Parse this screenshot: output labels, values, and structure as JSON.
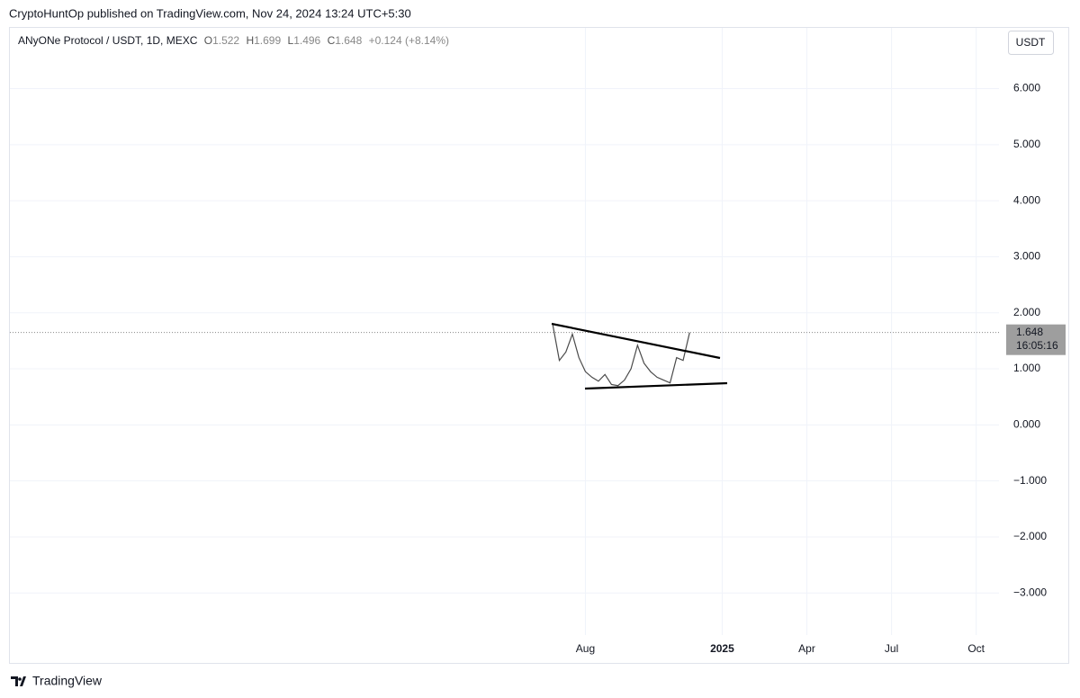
{
  "published": "CryptoHuntOp published on TradingView.com, Nov 24, 2024 13:24 UTC+5:30",
  "brand": "TradingView",
  "chart_data": {
    "type": "line",
    "symbol": "ANyONe Protocol / USDT, 1D, MEXC",
    "ohlc": [
      {
        "label": "O",
        "value": 1.522
      },
      {
        "label": "H",
        "value": 1.699
      },
      {
        "label": "L",
        "value": 1.496
      },
      {
        "label": "C",
        "value": 1.648
      }
    ],
    "change": "+0.124 (+8.14%)",
    "currency": "USDT",
    "last_price": 1.648,
    "countdown": "16:05:16",
    "color": "#4a4a4a",
    "grid": true,
    "categories": [
      null,
      null,
      null,
      null,
      null,
      null,
      null,
      null,
      null,
      null,
      null,
      null,
      null,
      null,
      null,
      null,
      null,
      null,
      null,
      null,
      null,
      null,
      null,
      null,
      null,
      null,
      null,
      null,
      null,
      null,
      null,
      null,
      null,
      null,
      null,
      null,
      null,
      null,
      null,
      null,
      null,
      null,
      null,
      null,
      null,
      null,
      null,
      null,
      null,
      null,
      null,
      null,
      null,
      null,
      null,
      null,
      null,
      null,
      null,
      null,
      null,
      null,
      null,
      null,
      null,
      null,
      null,
      null,
      null,
      null,
      null,
      null,
      null,
      null,
      null,
      null,
      null,
      null,
      null,
      null,
      null,
      null,
      null,
      null,
      null,
      null,
      null,
      null,
      "Aug",
      null,
      null,
      null,
      null,
      null,
      null,
      null,
      null,
      null,
      null,
      null,
      null,
      null,
      null,
      null,
      null,
      null,
      null,
      null,
      null,
      "2025",
      null,
      null,
      null,
      null,
      null,
      null,
      null,
      null,
      null,
      null,
      null,
      null,
      "Apr",
      null,
      null,
      null,
      null,
      null,
      null,
      null,
      null,
      null,
      null,
      null,
      null,
      "Jul",
      null,
      null,
      null,
      null,
      null,
      null,
      null,
      null,
      null,
      null,
      null,
      null,
      "Oct",
      null,
      null,
      null
    ],
    "values": [
      null,
      null,
      null,
      null,
      null,
      null,
      null,
      null,
      null,
      null,
      null,
      null,
      null,
      null,
      null,
      null,
      null,
      null,
      null,
      null,
      null,
      null,
      null,
      null,
      null,
      null,
      null,
      null,
      null,
      null,
      null,
      null,
      null,
      null,
      null,
      null,
      null,
      null,
      null,
      null,
      null,
      null,
      null,
      null,
      null,
      null,
      null,
      null,
      null,
      null,
      null,
      null,
      null,
      null,
      null,
      null,
      null,
      null,
      null,
      null,
      null,
      null,
      null,
      null,
      null,
      null,
      null,
      null,
      null,
      null,
      null,
      null,
      null,
      null,
      null,
      null,
      null,
      null,
      null,
      null,
      null,
      null,
      null,
      1.78,
      1.15,
      1.3,
      1.62,
      1.2,
      0.95,
      0.85,
      0.78,
      0.9,
      0.72,
      0.7,
      0.8,
      1.0,
      1.42,
      1.1,
      0.95,
      0.85,
      0.8,
      0.75,
      1.2,
      1.15,
      1.648,
      null,
      null,
      null,
      null,
      null,
      null,
      null,
      null,
      null,
      null,
      null,
      null,
      null,
      null,
      null,
      null,
      null,
      null,
      null,
      null,
      null,
      null,
      null,
      null,
      null,
      null,
      null,
      null,
      null,
      null,
      null,
      null,
      null,
      null,
      null,
      null,
      null,
      null,
      null,
      null,
      null,
      null,
      null,
      null,
      null,
      null,
      null
    ],
    "ylim": [
      -3.75,
      7.1
    ],
    "yticks": [
      {
        "value": 6,
        "label": "6.000"
      },
      {
        "value": 5,
        "label": "5.000"
      },
      {
        "value": 4,
        "label": "4.000"
      },
      {
        "value": 3,
        "label": "3.000"
      },
      {
        "value": 2,
        "label": "2.000"
      },
      {
        "value": 1,
        "label": "1.000"
      },
      {
        "value": 0,
        "label": "0.000"
      },
      {
        "value": -1,
        "label": "−1.000"
      },
      {
        "value": -2,
        "label": "−2.000"
      },
      {
        "value": -3,
        "label": "−3.000"
      }
    ]
  }
}
